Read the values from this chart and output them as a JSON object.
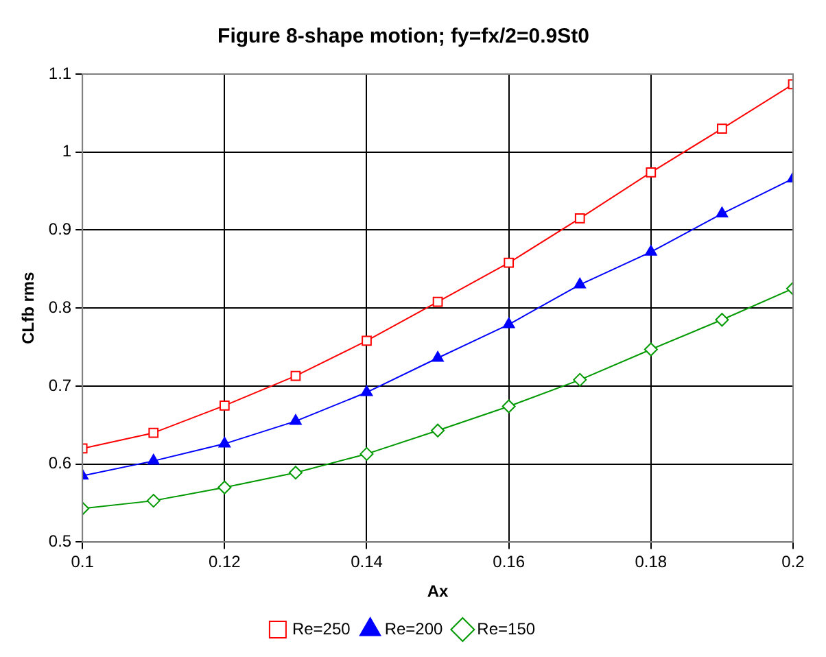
{
  "chart_data": {
    "type": "line",
    "title": "Figure 8-shape motion; fy=fx/2=0.9St0",
    "xlabel": "Ax",
    "ylabel": "CLfb rms",
    "x": [
      0.1,
      0.11,
      0.12,
      0.13,
      0.14,
      0.15,
      0.16,
      0.17,
      0.18,
      0.19,
      0.2
    ],
    "series": [
      {
        "name": "Re=250",
        "color": "#ff0000",
        "marker": "square",
        "values": [
          0.62,
          0.64,
          0.675,
          0.713,
          0.758,
          0.808,
          0.858,
          0.915,
          0.974,
          1.03,
          1.087
        ]
      },
      {
        "name": "Re=200",
        "color": "#0000ff",
        "marker": "triangle",
        "values": [
          0.585,
          0.604,
          0.626,
          0.655,
          0.692,
          0.736,
          0.779,
          0.83,
          0.872,
          0.921,
          0.966
        ]
      },
      {
        "name": "Re=150",
        "color": "#009900",
        "marker": "diamond",
        "values": [
          0.543,
          0.553,
          0.57,
          0.589,
          0.613,
          0.643,
          0.674,
          0.708,
          0.747,
          0.785,
          0.825
        ]
      }
    ],
    "xlim": [
      0.1,
      0.2
    ],
    "xticks": [
      0.1,
      0.12,
      0.14,
      0.16,
      0.18,
      0.2
    ],
    "ylim": [
      0.5,
      1.1
    ],
    "yticks": [
      0.5,
      0.6,
      0.7,
      0.8,
      0.9,
      1,
      1.1
    ],
    "grid": true,
    "legend": "bottom",
    "line_style": "solid"
  }
}
